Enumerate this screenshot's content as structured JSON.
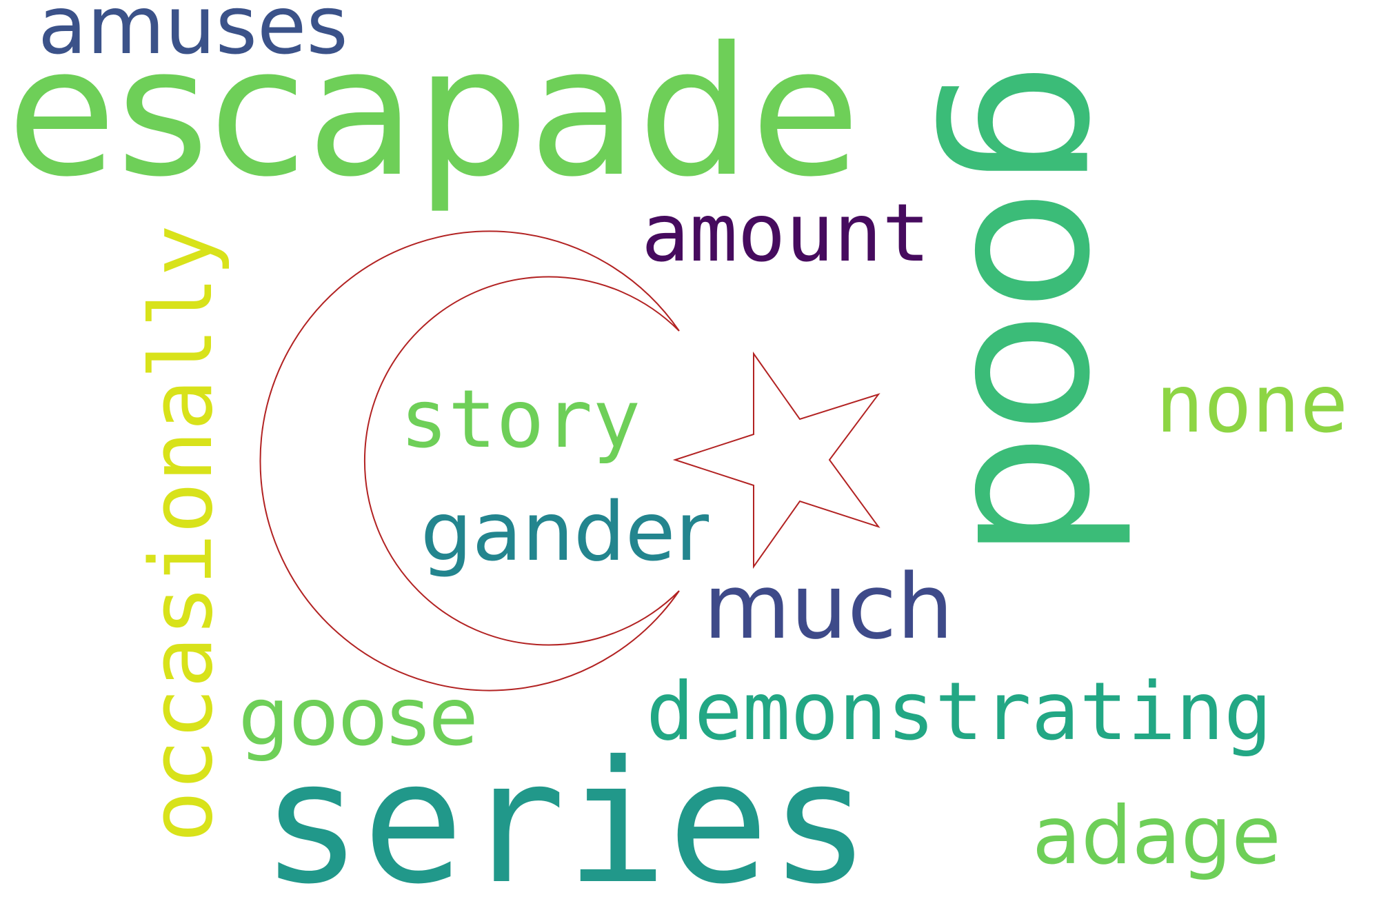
{
  "words": {
    "escapade": {
      "text": "escapade",
      "color": "#6ecf58"
    },
    "good": {
      "text": "good",
      "color": "#3bbc78"
    },
    "series": {
      "text": "series",
      "color": "#21988a"
    },
    "occasionally": {
      "text": "occasionally",
      "color": "#d8e21a"
    },
    "amuses": {
      "text": "amuses",
      "color": "#3b5289"
    },
    "amount": {
      "text": "amount",
      "color": "#460b5e"
    },
    "story": {
      "text": "story",
      "color": "#6ecf58"
    },
    "gander": {
      "text": "gander",
      "color": "#23858e"
    },
    "much": {
      "text": "much",
      "color": "#3e4a89"
    },
    "none": {
      "text": "none",
      "color": "#8dd544"
    },
    "demonstrating": {
      "text": "demonstrating",
      "color": "#22a784"
    },
    "goose": {
      "text": "goose",
      "color": "#6ecf58"
    },
    "adage": {
      "text": "adage",
      "color": "#6ecf58"
    }
  },
  "emblem": {
    "name": "crescent-and-star",
    "stroke_color": "#b22222"
  }
}
